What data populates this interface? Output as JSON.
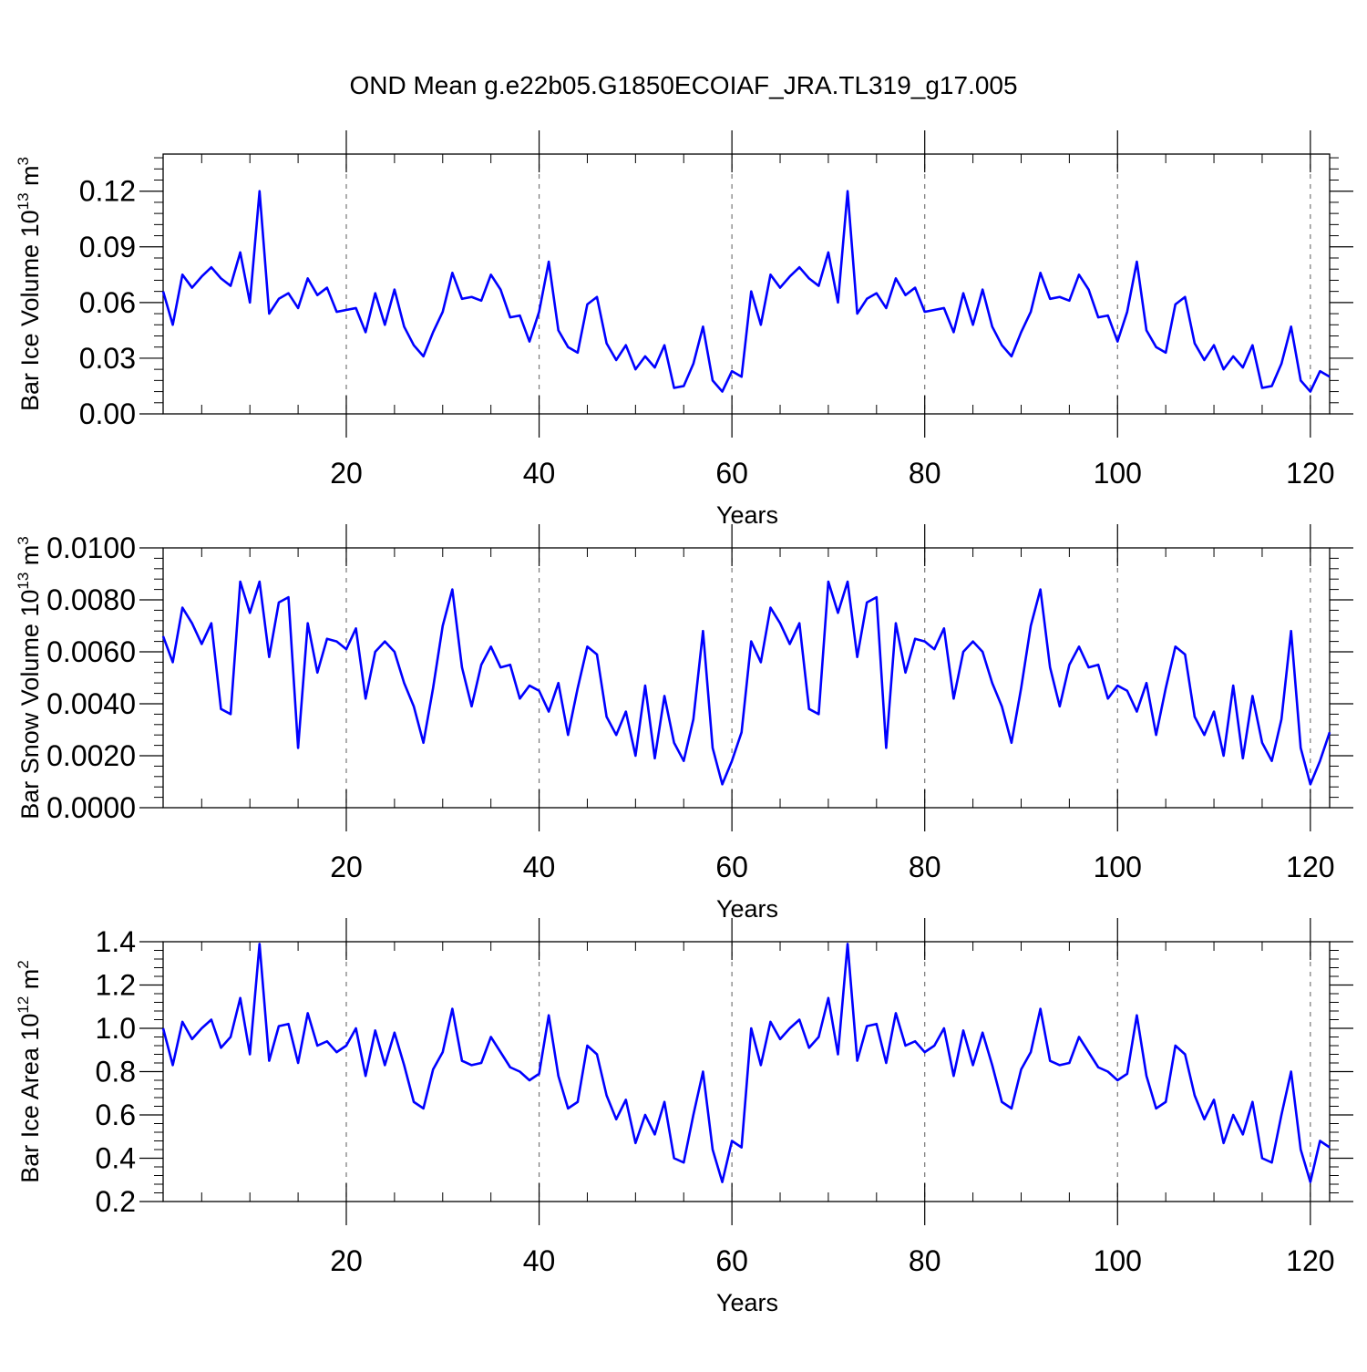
{
  "title": "OND Mean g.e22b05.G1850ECOIAF_JRA.TL319_g17.005",
  "line_color": "#0000ff",
  "chart_data": [
    {
      "type": "line",
      "xlabel": "Years",
      "ylabel": {
        "prefix": "Bar Ice Volume 10",
        "exp": "13",
        "mid": " m",
        "exp2": "3"
      },
      "xlim": [
        1,
        122
      ],
      "ylim": [
        0,
        0.14
      ],
      "xticks": [
        20,
        40,
        60,
        80,
        100,
        120
      ],
      "xtick_labels": [
        "20",
        "40",
        "60",
        "80",
        "100",
        "120"
      ],
      "yticks": [
        0.0,
        0.03,
        0.06,
        0.09,
        0.12
      ],
      "ytick_labels": [
        "0.00",
        "0.03",
        "0.06",
        "0.09",
        "0.12"
      ],
      "grid": "vertical dashed at major x ticks",
      "series": [
        {
          "x_start": 1,
          "values": [
            0.066,
            0.048,
            0.075,
            0.068,
            0.074,
            0.079,
            0.073,
            0.069,
            0.087,
            0.06,
            0.12,
            0.054,
            0.062,
            0.065,
            0.057,
            0.073,
            0.064,
            0.068,
            0.055,
            0.056,
            0.057,
            0.044,
            0.065,
            0.048,
            0.067,
            0.047,
            0.037,
            0.031,
            0.044,
            0.055,
            0.076,
            0.062,
            0.063,
            0.061,
            0.075,
            0.067,
            0.052,
            0.053,
            0.039,
            0.055,
            0.082,
            0.045,
            0.036,
            0.033,
            0.059,
            0.063,
            0.038,
            0.029,
            0.037,
            0.024,
            0.031,
            0.025,
            0.037,
            0.014,
            0.015,
            0.027,
            0.047,
            0.018,
            0.012,
            0.023,
            0.02,
            0.066,
            0.048,
            0.075,
            0.068,
            0.074,
            0.079,
            0.073,
            0.069,
            0.087,
            0.06,
            0.12,
            0.054,
            0.062,
            0.065,
            0.057,
            0.073,
            0.064,
            0.068,
            0.055,
            0.056,
            0.057,
            0.044,
            0.065,
            0.048,
            0.067,
            0.047,
            0.037,
            0.031,
            0.044,
            0.055,
            0.076,
            0.062,
            0.063,
            0.061,
            0.075,
            0.067,
            0.052,
            0.053,
            0.039,
            0.055,
            0.082,
            0.045,
            0.036,
            0.033,
            0.059,
            0.063,
            0.038,
            0.029,
            0.037,
            0.024,
            0.031,
            0.025,
            0.037,
            0.014,
            0.015,
            0.027,
            0.047,
            0.018,
            0.012,
            0.023,
            0.02
          ]
        }
      ]
    },
    {
      "type": "line",
      "xlabel": "Years",
      "ylabel": {
        "prefix": "Bar Snow Volume 10",
        "exp": "13",
        "mid": " m",
        "exp2": "3"
      },
      "xlim": [
        1,
        122
      ],
      "ylim": [
        0,
        0.01
      ],
      "xticks": [
        20,
        40,
        60,
        80,
        100,
        120
      ],
      "xtick_labels": [
        "20",
        "40",
        "60",
        "80",
        "100",
        "120"
      ],
      "yticks": [
        0.0,
        0.002,
        0.004,
        0.006,
        0.008,
        0.01
      ],
      "ytick_labels": [
        "0.0000",
        "0.0020",
        "0.0040",
        "0.0060",
        "0.0080",
        "0.0100"
      ],
      "grid": "vertical dashed at major x ticks",
      "series": [
        {
          "x_start": 1,
          "values": [
            0.0066,
            0.0056,
            0.0077,
            0.0071,
            0.0063,
            0.0071,
            0.0038,
            0.0036,
            0.0087,
            0.0075,
            0.0087,
            0.0058,
            0.0079,
            0.0081,
            0.0023,
            0.0071,
            0.0052,
            0.0065,
            0.0064,
            0.0061,
            0.0069,
            0.0042,
            0.006,
            0.0064,
            0.006,
            0.0048,
            0.0039,
            0.0025,
            0.0046,
            0.007,
            0.0084,
            0.0054,
            0.0039,
            0.0055,
            0.0062,
            0.0054,
            0.0055,
            0.0042,
            0.0047,
            0.0045,
            0.0037,
            0.0048,
            0.0028,
            0.0046,
            0.0062,
            0.0059,
            0.0035,
            0.0028,
            0.0037,
            0.002,
            0.0047,
            0.0019,
            0.0043,
            0.0025,
            0.0018,
            0.0034,
            0.0068,
            0.0023,
            0.0009,
            0.0018,
            0.0029,
            0.0064,
            0.0056,
            0.0077,
            0.0071,
            0.0063,
            0.0071,
            0.0038,
            0.0036,
            0.0087,
            0.0075,
            0.0087,
            0.0058,
            0.0079,
            0.0081,
            0.0023,
            0.0071,
            0.0052,
            0.0065,
            0.0064,
            0.0061,
            0.0069,
            0.0042,
            0.006,
            0.0064,
            0.006,
            0.0048,
            0.0039,
            0.0025,
            0.0046,
            0.007,
            0.0084,
            0.0054,
            0.0039,
            0.0055,
            0.0062,
            0.0054,
            0.0055,
            0.0042,
            0.0047,
            0.0045,
            0.0037,
            0.0048,
            0.0028,
            0.0046,
            0.0062,
            0.0059,
            0.0035,
            0.0028,
            0.0037,
            0.002,
            0.0047,
            0.0019,
            0.0043,
            0.0025,
            0.0018,
            0.0034,
            0.0068,
            0.0023,
            0.0009,
            0.0018,
            0.0029
          ]
        }
      ]
    },
    {
      "type": "line",
      "xlabel": "Years",
      "ylabel": {
        "prefix": "Bar Ice Area 10",
        "exp": "12",
        "mid": " m",
        "exp2": "2"
      },
      "xlim": [
        1,
        122
      ],
      "ylim": [
        0.2,
        1.4
      ],
      "xticks": [
        20,
        40,
        60,
        80,
        100,
        120
      ],
      "xtick_labels": [
        "20",
        "40",
        "60",
        "80",
        "100",
        "120"
      ],
      "yticks": [
        0.2,
        0.4,
        0.6,
        0.8,
        1.0,
        1.2,
        1.4
      ],
      "ytick_labels": [
        "0.2",
        "0.4",
        "0.6",
        "0.8",
        "1.0",
        "1.2",
        "1.4"
      ],
      "grid": "vertical dashed at major x ticks",
      "series": [
        {
          "x_start": 1,
          "values": [
            1.0,
            0.83,
            1.03,
            0.95,
            1.0,
            1.04,
            0.91,
            0.96,
            1.14,
            0.88,
            1.39,
            0.85,
            1.01,
            1.02,
            0.84,
            1.07,
            0.92,
            0.94,
            0.89,
            0.92,
            1.0,
            0.78,
            0.99,
            0.83,
            0.98,
            0.83,
            0.66,
            0.63,
            0.81,
            0.89,
            1.09,
            0.85,
            0.83,
            0.84,
            0.96,
            0.89,
            0.82,
            0.8,
            0.76,
            0.79,
            1.06,
            0.78,
            0.63,
            0.66,
            0.92,
            0.88,
            0.69,
            0.58,
            0.67,
            0.47,
            0.6,
            0.51,
            0.66,
            0.4,
            0.38,
            0.6,
            0.8,
            0.44,
            0.29,
            0.48,
            0.45,
            1.0,
            0.83,
            1.03,
            0.95,
            1.0,
            1.04,
            0.91,
            0.96,
            1.14,
            0.88,
            1.39,
            0.85,
            1.01,
            1.02,
            0.84,
            1.07,
            0.92,
            0.94,
            0.89,
            0.92,
            1.0,
            0.78,
            0.99,
            0.83,
            0.98,
            0.83,
            0.66,
            0.63,
            0.81,
            0.89,
            1.09,
            0.85,
            0.83,
            0.84,
            0.96,
            0.89,
            0.82,
            0.8,
            0.76,
            0.79,
            1.06,
            0.78,
            0.63,
            0.66,
            0.92,
            0.88,
            0.69,
            0.58,
            0.67,
            0.47,
            0.6,
            0.51,
            0.66,
            0.4,
            0.38,
            0.6,
            0.8,
            0.44,
            0.29,
            0.48,
            0.45
          ]
        }
      ]
    }
  ]
}
